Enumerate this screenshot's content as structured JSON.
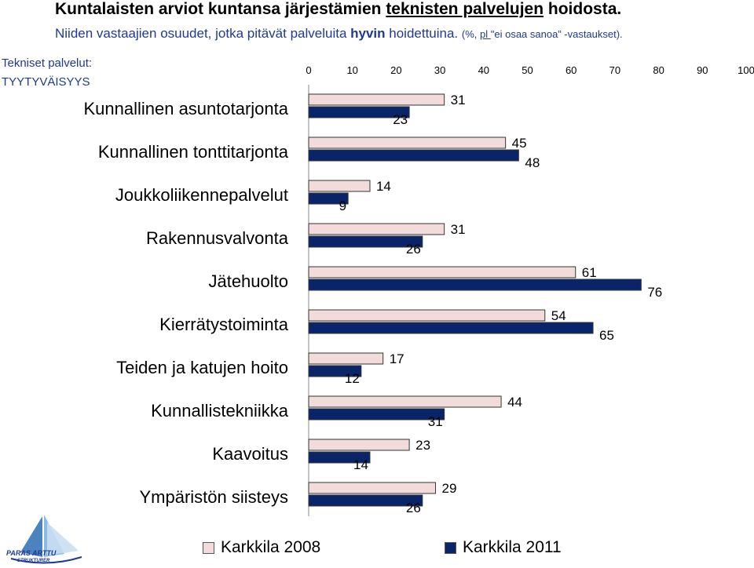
{
  "header": {
    "title_prefix": "Kuntalaisten arviot kuntansa järjestämien ",
    "title_underlined": "teknisten palvelujen",
    "title_suffix": " hoidosta.",
    "subtitle_prefix": "Niiden vastaajien osuudet, jotka pitävät palveluita ",
    "subtitle_bold": "hyvin",
    "subtitle_suffix": " hoidettuina. ",
    "subtitle_note_prefix": "(%, ",
    "subtitle_note_underlined": "pl ",
    "subtitle_note_suffix": "\"ei osaa sanoa” -vastaukset)."
  },
  "category_title_line1": "Tekniset palvelut:",
  "category_title_line2": "TYYTYVÄISYYS",
  "logo": {
    "line1": "PARAS ARTTU",
    "line2": "STRUKTURER"
  },
  "colors": {
    "series_2008": "#f2dcdb",
    "series_2011": "#0a2469",
    "bar_border": "#333333",
    "title_blue": "#1f3a93"
  },
  "chart_data": {
    "type": "bar",
    "orientation": "horizontal",
    "categories": [
      "Kunnallinen asuntotarjonta",
      "Kunnallinen tonttitarjonta",
      "Joukkoliikennepalvelut",
      "Rakennusvalvonta",
      "Jätehuolto",
      "Kierrätystoiminta",
      "Teiden ja katujen hoito",
      "Kunnallistekniikka",
      "Kaavoitus",
      "Ympäristön siisteys"
    ],
    "series": [
      {
        "name": "Karkkila 2008",
        "values": [
          31,
          45,
          14,
          31,
          61,
          54,
          17,
          44,
          23,
          29
        ]
      },
      {
        "name": "Karkkila 2011",
        "values": [
          23,
          48,
          9,
          26,
          76,
          65,
          12,
          31,
          14,
          26
        ]
      }
    ],
    "xlim": [
      0,
      100
    ],
    "xticks": [
      "0",
      "10",
      "20",
      "30",
      "40",
      "50",
      "60",
      "70",
      "80",
      "90",
      "100"
    ],
    "grid": false,
    "legend": "bottom"
  }
}
